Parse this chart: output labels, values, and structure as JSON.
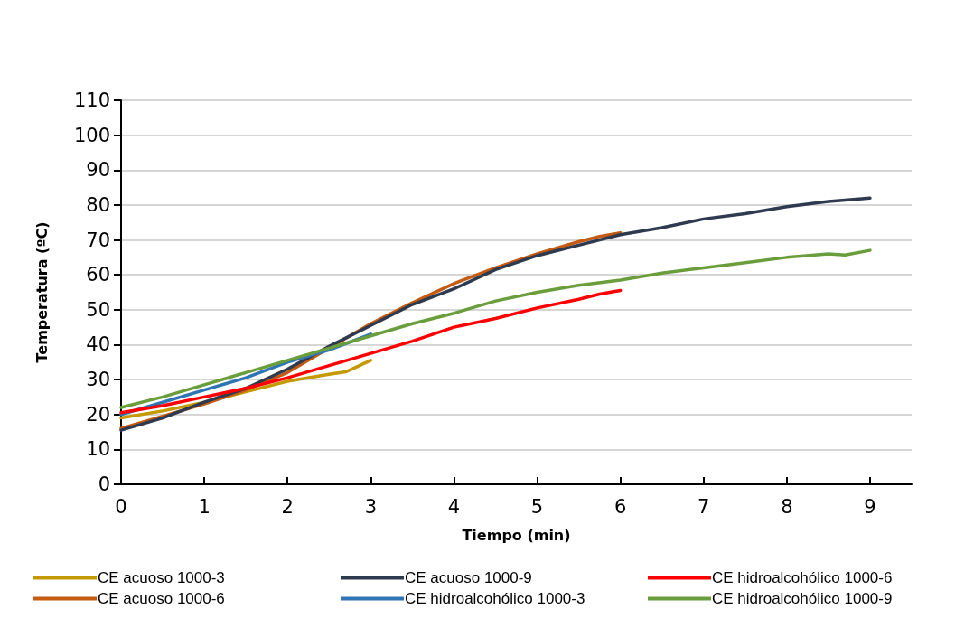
{
  "chart_data": {
    "type": "line",
    "xlabel": "Tiempo (min)",
    "ylabel": "Temperatura (ºC)",
    "xlim": [
      0,
      9.5
    ],
    "xticks": [
      0,
      1,
      2,
      3,
      4,
      5,
      6,
      7,
      8,
      9
    ],
    "ylim": [
      0,
      110
    ],
    "yticks": [
      0,
      10,
      20,
      30,
      40,
      50,
      60,
      70,
      80,
      90,
      100,
      110
    ],
    "grid": "y",
    "legend": "bottom",
    "marker": "none",
    "line_style": "solid",
    "series": [
      {
        "name": "CE acuoso 1000-3",
        "color": "#c59a00",
        "x": [
          0,
          0.5,
          1,
          1.5,
          2,
          2.5,
          2.7,
          3
        ],
        "values": [
          19,
          21,
          23.5,
          26.5,
          29.5,
          31.5,
          32.2,
          35.5
        ]
      },
      {
        "name": "CE acuoso 1000-6",
        "color": "#c55a11",
        "x": [
          0,
          0.5,
          1,
          1.5,
          2,
          2.5,
          3,
          3.5,
          4,
          4.5,
          5,
          5.5,
          5.75,
          6
        ],
        "values": [
          16,
          19.5,
          23,
          27,
          32,
          39,
          46,
          52,
          57.5,
          62,
          66,
          69.5,
          71,
          72
        ]
      },
      {
        "name": "CE acuoso 1000-9",
        "color": "#2e3a4f",
        "x": [
          0,
          0.5,
          1,
          1.5,
          2,
          2.5,
          3,
          3.5,
          4,
          4.5,
          5,
          5.5,
          6,
          6.5,
          7,
          7.5,
          8,
          8.5,
          9
        ],
        "values": [
          15.5,
          19,
          23.5,
          27.5,
          33,
          39.5,
          45.5,
          51.5,
          56,
          61.5,
          65.5,
          68.5,
          71.5,
          73.5,
          76,
          77.5,
          79.5,
          81,
          82
        ]
      },
      {
        "name": "CE hidroalcohólico 1000-3",
        "color": "#2e75b6",
        "x": [
          0,
          0.5,
          1,
          1.5,
          2,
          2.5,
          3
        ],
        "values": [
          20,
          23.5,
          27,
          30.5,
          35,
          38.5,
          43
        ]
      },
      {
        "name": "CE hidroalcohólico 1000-6",
        "color": "#ff0000",
        "x": [
          0,
          0.5,
          1,
          1.5,
          2,
          2.5,
          3,
          3.5,
          4,
          4.5,
          5,
          5.5,
          5.75,
          6
        ],
        "values": [
          20.5,
          22.5,
          25,
          27.5,
          30.5,
          34,
          37.5,
          41,
          45,
          47.5,
          50.5,
          53,
          54.5,
          55.5
        ]
      },
      {
        "name": "CE hidroalcohólico 1000-9",
        "color": "#6a9e3c",
        "x": [
          0,
          0.5,
          1,
          1.5,
          2,
          2.5,
          3,
          3.5,
          4,
          4.5,
          5,
          5.5,
          6,
          6.5,
          7,
          7.5,
          8,
          8.5,
          8.7,
          9
        ],
        "values": [
          22,
          25,
          28.5,
          32,
          35.5,
          39,
          42.5,
          46,
          49,
          52.5,
          55,
          57,
          58.5,
          60.5,
          62,
          63.5,
          65,
          66,
          65.7,
          67
        ]
      }
    ]
  }
}
